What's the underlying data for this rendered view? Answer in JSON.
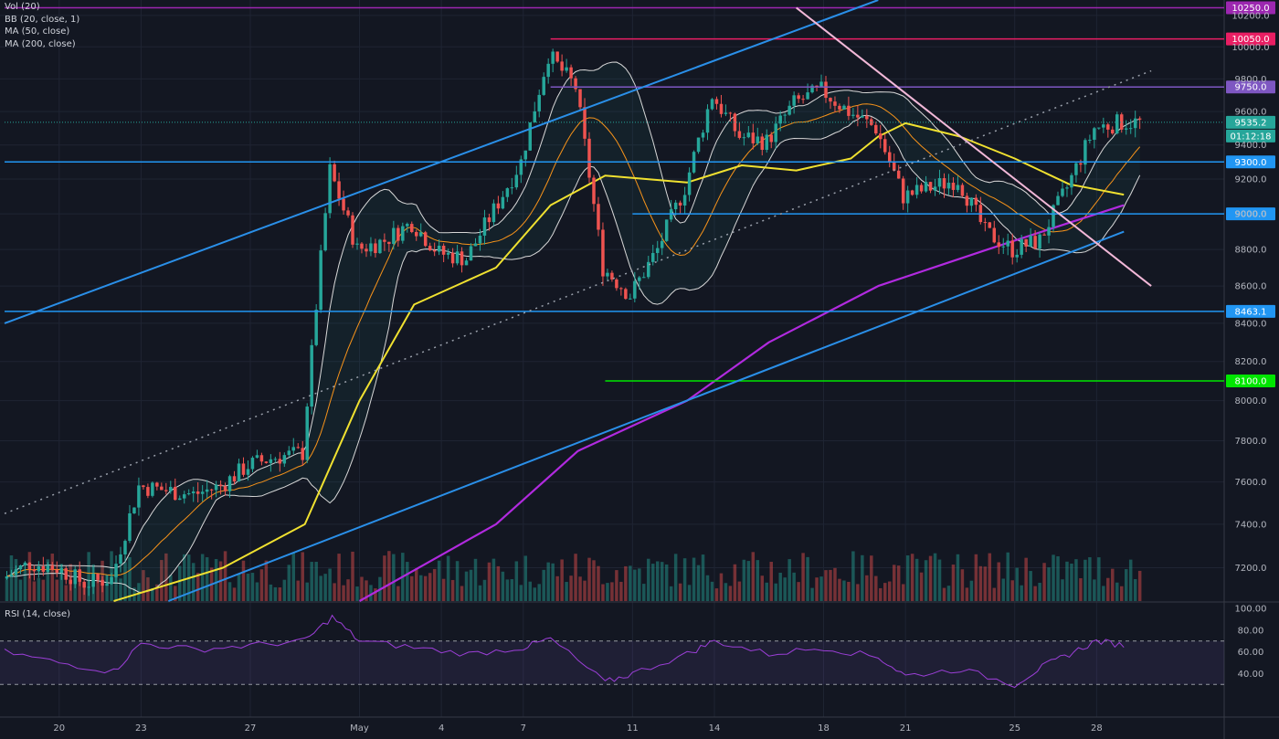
{
  "legend": {
    "items": [
      "Vol (20)",
      "BB (20, close, 1)",
      "MA (50, close)",
      "MA (200, close)"
    ],
    "rsi": "RSI (14, close)"
  },
  "colors": {
    "background": "#131722",
    "grid": "#1f2433",
    "up": "#26a69a",
    "down": "#ef5350",
    "ma50": "#f0e130",
    "ma200": "#b12adf",
    "bb": "#d8d8d8",
    "bb_mid": "#f7931a",
    "rsi": "#9c3fd8",
    "channel": "#2a8fe8",
    "downtrend": "#f2b8d8",
    "median": "#9aa0ab",
    "last": "#26a69a"
  },
  "chart_data": {
    "type": "candlestick",
    "instrument_price_axis": {
      "min": 7050,
      "max": 10300,
      "ticks": [
        7200,
        7400,
        7600,
        7800,
        8000,
        8200,
        8400,
        8600,
        8800,
        9000,
        9200,
        9400,
        9600,
        9800,
        10000,
        10200
      ],
      "tick_labels": [
        "7200.0",
        "7400.0",
        "7600.0",
        "7800.0",
        "8000.0",
        "8200.0",
        "8400.0",
        "8600.0",
        "8800.0",
        "9000.0",
        "9200.0",
        "9400.0",
        "9600.0",
        "9800.0",
        "10000.0",
        "10200.0"
      ]
    },
    "x_axis": {
      "labels": [
        "20",
        "23",
        "27",
        "May",
        "4",
        "7",
        "11",
        "14",
        "18",
        "21",
        "25",
        "28"
      ],
      "dates": [
        "2020-04-20",
        "2020-04-23",
        "2020-04-27",
        "2020-05-01",
        "2020-05-04",
        "2020-05-07",
        "2020-05-11",
        "2020-05-14",
        "2020-05-18",
        "2020-05-21",
        "2020-05-25",
        "2020-05-28"
      ],
      "start": "2020-04-18",
      "end": "2020-05-31"
    },
    "close_path": [
      {
        "d": "2020-04-18",
        "p": 7150
      },
      {
        "d": "2020-04-19",
        "p": 7220
      },
      {
        "d": "2020-04-20",
        "p": 7200
      },
      {
        "d": "2020-04-21",
        "p": 7130
      },
      {
        "d": "2020-04-22",
        "p": 7150
      },
      {
        "d": "2020-04-23",
        "p": 7580
      },
      {
        "d": "2020-04-24",
        "p": 7560
      },
      {
        "d": "2020-04-25",
        "p": 7540
      },
      {
        "d": "2020-04-26",
        "p": 7580
      },
      {
        "d": "2020-04-27",
        "p": 7680
      },
      {
        "d": "2020-04-28",
        "p": 7720
      },
      {
        "d": "2020-04-29",
        "p": 7740
      },
      {
        "d": "2020-04-30",
        "p": 9250
      },
      {
        "d": "2020-05-01",
        "p": 8800
      },
      {
        "d": "2020-05-02",
        "p": 8850
      },
      {
        "d": "2020-05-03",
        "p": 8950
      },
      {
        "d": "2020-05-04",
        "p": 8780
      },
      {
        "d": "2020-05-05",
        "p": 8750
      },
      {
        "d": "2020-05-06",
        "p": 9020
      },
      {
        "d": "2020-05-07",
        "p": 9300
      },
      {
        "d": "2020-05-08",
        "p": 9950
      },
      {
        "d": "2020-05-09",
        "p": 9750
      },
      {
        "d": "2020-05-10",
        "p": 8700
      },
      {
        "d": "2020-05-11",
        "p": 8550
      },
      {
        "d": "2020-05-12",
        "p": 8800
      },
      {
        "d": "2020-05-13",
        "p": 9150
      },
      {
        "d": "2020-05-14",
        "p": 9700
      },
      {
        "d": "2020-05-15",
        "p": 9450
      },
      {
        "d": "2020-05-16",
        "p": 9420
      },
      {
        "d": "2020-05-17",
        "p": 9650
      },
      {
        "d": "2020-05-18",
        "p": 9730
      },
      {
        "d": "2020-05-19",
        "p": 9600
      },
      {
        "d": "2020-05-20",
        "p": 9500
      },
      {
        "d": "2020-05-21",
        "p": 9100
      },
      {
        "d": "2020-05-22",
        "p": 9150
      },
      {
        "d": "2020-05-23",
        "p": 9200
      },
      {
        "d": "2020-05-24",
        "p": 8900
      },
      {
        "d": "2020-05-25",
        "p": 8800
      },
      {
        "d": "2020-05-26",
        "p": 8850
      },
      {
        "d": "2020-05-27",
        "p": 9150
      },
      {
        "d": "2020-05-28",
        "p": 9500
      },
      {
        "d": "2020-05-29",
        "p": 9535
      }
    ],
    "horizontal_levels": [
      {
        "price": 10250,
        "label": "10250.0",
        "color": "#9c27b0",
        "from": "2020-04-18"
      },
      {
        "price": 10050,
        "label": "10050.0",
        "color": "#e91e63",
        "from": "2020-05-08"
      },
      {
        "price": 9750,
        "label": "9750.0",
        "color": "#7e57c2",
        "from": "2020-05-08"
      },
      {
        "price": 9535.2,
        "label": "9535.2",
        "color": "#26a69a",
        "from": "2020-04-18",
        "dotted": true
      },
      {
        "price": 9300,
        "label": "9300.0",
        "color": "#2196f3",
        "from": "2020-04-18"
      },
      {
        "price": 9000,
        "label": "9000.0",
        "color": "#2196f3",
        "from": "2020-05-11"
      },
      {
        "price": 8463.1,
        "label": "8463.1",
        "color": "#2196f3",
        "from": "2020-04-18"
      },
      {
        "price": 8100,
        "label": "8100.0",
        "color": "#00e600",
        "from": "2020-05-10"
      }
    ],
    "countdown": "01:12:18",
    "moving_average_50": [
      {
        "d": "2020-04-22",
        "p": 7050
      },
      {
        "d": "2020-04-26",
        "p": 7200
      },
      {
        "d": "2020-04-29",
        "p": 7400
      },
      {
        "d": "2020-05-01",
        "p": 8000
      },
      {
        "d": "2020-05-03",
        "p": 8500
      },
      {
        "d": "2020-05-06",
        "p": 8700
      },
      {
        "d": "2020-05-08",
        "p": 9050
      },
      {
        "d": "2020-05-10",
        "p": 9220
      },
      {
        "d": "2020-05-13",
        "p": 9180
      },
      {
        "d": "2020-05-15",
        "p": 9280
      },
      {
        "d": "2020-05-17",
        "p": 9250
      },
      {
        "d": "2020-05-19",
        "p": 9320
      },
      {
        "d": "2020-05-20",
        "p": 9450
      },
      {
        "d": "2020-05-21",
        "p": 9530
      },
      {
        "d": "2020-05-23",
        "p": 9450
      },
      {
        "d": "2020-05-25",
        "p": 9320
      },
      {
        "d": "2020-05-27",
        "p": 9170
      },
      {
        "d": "2020-05-29",
        "p": 9110
      }
    ],
    "moving_average_200": [
      {
        "d": "2020-05-01",
        "p": 7050
      },
      {
        "d": "2020-05-06",
        "p": 7400
      },
      {
        "d": "2020-05-09",
        "p": 7750
      },
      {
        "d": "2020-05-13",
        "p": 8000
      },
      {
        "d": "2020-05-16",
        "p": 8300
      },
      {
        "d": "2020-05-20",
        "p": 8600
      },
      {
        "d": "2020-05-24",
        "p": 8800
      },
      {
        "d": "2020-05-27",
        "p": 8950
      },
      {
        "d": "2020-05-29",
        "p": 9050
      }
    ],
    "trendlines": [
      {
        "name": "upper channel",
        "from": {
          "d": "2020-04-18",
          "p": 8400
        },
        "to": {
          "d": "2020-05-20",
          "p": 10300
        },
        "color": "#2a8fe8"
      },
      {
        "name": "lower channel",
        "from": {
          "d": "2020-04-24",
          "p": 7050
        },
        "to": {
          "d": "2020-05-29",
          "p": 8900
        },
        "color": "#2a8fe8"
      },
      {
        "name": "downtrend",
        "from": {
          "d": "2020-05-17",
          "p": 10250
        },
        "to": {
          "d": "2020-05-30",
          "p": 8600
        },
        "color": "#f2b8d8"
      },
      {
        "name": "median",
        "from": {
          "d": "2020-04-18",
          "p": 7450
        },
        "to": {
          "d": "2020-05-30",
          "p": 9850
        },
        "color": "#9aa0ab",
        "dotted": true
      }
    ],
    "rsi": {
      "levels": [
        30,
        70
      ],
      "ticks": [
        40,
        60,
        80,
        100
      ],
      "tick_labels": [
        "40.00",
        "60.00",
        "80.00",
        "100.00"
      ],
      "values": [
        {
          "d": "2020-04-18",
          "v": 60
        },
        {
          "d": "2020-04-20",
          "v": 50
        },
        {
          "d": "2020-04-22",
          "v": 42
        },
        {
          "d": "2020-04-23",
          "v": 68
        },
        {
          "d": "2020-04-25",
          "v": 62
        },
        {
          "d": "2020-04-27",
          "v": 66
        },
        {
          "d": "2020-04-29",
          "v": 70
        },
        {
          "d": "2020-04-30",
          "v": 92
        },
        {
          "d": "2020-05-01",
          "v": 70
        },
        {
          "d": "2020-05-03",
          "v": 64
        },
        {
          "d": "2020-05-05",
          "v": 58
        },
        {
          "d": "2020-05-07",
          "v": 64
        },
        {
          "d": "2020-05-08",
          "v": 72
        },
        {
          "d": "2020-05-10",
          "v": 32
        },
        {
          "d": "2020-05-11",
          "v": 40
        },
        {
          "d": "2020-05-13",
          "v": 58
        },
        {
          "d": "2020-05-14",
          "v": 70
        },
        {
          "d": "2020-05-16",
          "v": 58
        },
        {
          "d": "2020-05-18",
          "v": 64
        },
        {
          "d": "2020-05-20",
          "v": 55
        },
        {
          "d": "2020-05-21",
          "v": 38
        },
        {
          "d": "2020-05-23",
          "v": 44
        },
        {
          "d": "2020-05-25",
          "v": 30
        },
        {
          "d": "2020-05-26",
          "v": 46
        },
        {
          "d": "2020-05-27",
          "v": 58
        },
        {
          "d": "2020-05-28",
          "v": 70
        },
        {
          "d": "2020-05-29",
          "v": 66
        }
      ]
    }
  }
}
